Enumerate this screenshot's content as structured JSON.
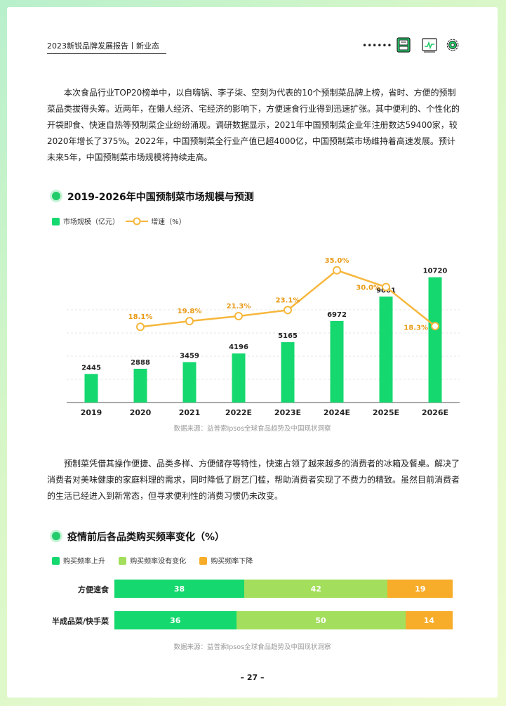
{
  "header": {
    "title": "2023新锐品牌发展报告丨新业态",
    "dots": "••••••"
  },
  "paragraphs": {
    "p1": "　　本次食品行业TOP20榜单中，以自嗨锅、李子柒、空刻为代表的10个预制菜品牌上榜，省时、方便的预制菜品类拔得头筹。近两年，在懒人经济、宅经济的影响下，方便速食行业得到迅速扩张。其中便利的、个性化的开袋即食、快速自热等预制菜企业纷纷涌现。调研数据显示，2021年中国预制菜企业年注册数达59400家，较2020年增长了375%。2022年，中国预制菜全行业产值已超4000亿，中国预制菜市场维持着高速发展。预计未来5年，中国预制菜市场规模将持续走高。",
    "p2": "　　预制菜凭借其操作便捷、品类多样、方便储存等特性，快速占领了越来越多的消费者的冰箱及餐桌。解决了消费者对美味健康的家庭料理的需求，同时降低了厨艺门槛，帮助消费者实现了不费力的精致。虽然目前消费者的生活已经进入到新常态，但寻求便利性的消费习惯仍未改变。"
  },
  "sections": {
    "chart1_title": "2019-2026年中国预制菜市场规模与预测",
    "chart2_title": "疫情前后各品类购买频率变化（%）"
  },
  "colors": {
    "green": "#15d86f",
    "light_green": "#a3de5c",
    "orange": "#f7ad2a",
    "line": "#f6b73c"
  },
  "chart_data": [
    {
      "type": "bar",
      "title": "2019-2026年中国预制菜市场规模与预测",
      "categories": [
        "2019",
        "2020",
        "2021",
        "2022E",
        "2023E",
        "2024E",
        "2025E",
        "2026E"
      ],
      "series": [
        {
          "name": "市场规模（亿元）",
          "kind": "bar",
          "values": [
            2445,
            2888,
            3459,
            4196,
            5165,
            6972,
            9061,
            10720
          ]
        },
        {
          "name": "增速（%）",
          "kind": "line",
          "values": [
            null,
            18.1,
            19.8,
            21.3,
            23.1,
            35.0,
            30.0,
            18.3
          ],
          "labels": [
            "",
            "18.1%",
            "19.8%",
            "21.3%",
            "23.1%",
            "35.0%",
            "30.0%",
            "18.3%"
          ]
        }
      ],
      "bar_labels": [
        "2445",
        "2888",
        "3459",
        "4196",
        "5165",
        "6972",
        "9061",
        "10720"
      ],
      "grid": true,
      "legend": "top-left",
      "source": "数据来源：益普索Ipsos全球食品趋势及中国现状洞察"
    },
    {
      "type": "bar",
      "stacked": true,
      "orientation": "horizontal",
      "title": "疫情前后各品类购买频率变化（%）",
      "categories": [
        "方便速食",
        "半成品菜/快手菜"
      ],
      "series": [
        {
          "name": "购买频率上升",
          "values": [
            38,
            36
          ]
        },
        {
          "name": "购买频率没有变化",
          "values": [
            42,
            50
          ]
        },
        {
          "name": "购买频率下降",
          "values": [
            19,
            14
          ]
        }
      ],
      "legend": "top-left",
      "source": "数据来源：益普索Ipsos全球食品趋势及中国现状洞察"
    }
  ],
  "footer": {
    "page": "– 27 –"
  }
}
